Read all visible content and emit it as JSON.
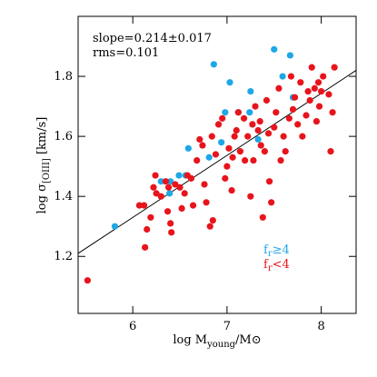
{
  "chart_data": {
    "type": "scatter",
    "xlabel": [
      "log M",
      "young",
      "/M⊙"
    ],
    "ylabel": [
      "log σ",
      "[OIII]",
      " [km/s]"
    ],
    "annotations": [
      "slope=0.214±0.017",
      "rms=0.101"
    ],
    "legend_labels": [
      [
        "f",
        "r",
        "≥4"
      ],
      [
        "f",
        "r",
        "<4"
      ]
    ],
    "xlim": [
      5.42,
      8.37
    ],
    "ylim": [
      1.01,
      2.0
    ],
    "xticks": [
      6,
      7,
      8
    ],
    "yticks": [
      1.2,
      1.4,
      1.6,
      1.8
    ],
    "fit_line": {
      "x": [
        5.42,
        8.37
      ],
      "y": [
        1.21,
        1.82
      ],
      "color": "#000000"
    },
    "series": [
      {
        "color": "#1ea7e6",
        "x": [
          5.81,
          6.3,
          6.39,
          6.4,
          6.49,
          6.56,
          6.59,
          6.81,
          6.86,
          6.94,
          6.98,
          7.03,
          7.12,
          7.24,
          7.25,
          7.33,
          7.5,
          7.59,
          7.67,
          7.7
        ],
        "y": [
          1.3,
          1.45,
          1.41,
          1.45,
          1.47,
          1.47,
          1.56,
          1.53,
          1.84,
          1.58,
          1.68,
          1.78,
          1.68,
          1.68,
          1.75,
          1.59,
          1.89,
          1.8,
          1.87,
          1.73
        ]
      },
      {
        "color": "#e8141c",
        "x": [
          5.52,
          6.07,
          6.12,
          6.13,
          6.15,
          6.19,
          6.22,
          6.24,
          6.25,
          6.3,
          6.35,
          6.37,
          6.38,
          6.4,
          6.41,
          6.45,
          6.5,
          6.52,
          6.55,
          6.58,
          6.62,
          6.64,
          6.68,
          6.71,
          6.74,
          6.76,
          6.78,
          6.82,
          6.84,
          6.85,
          6.88,
          6.91,
          6.95,
          6.98,
          7.0,
          7.02,
          7.05,
          7.06,
          7.08,
          7.1,
          7.12,
          7.14,
          7.18,
          7.19,
          7.22,
          7.25,
          7.27,
          7.28,
          7.3,
          7.33,
          7.35,
          7.36,
          7.38,
          7.4,
          7.42,
          7.44,
          7.45,
          7.47,
          7.5,
          7.52,
          7.55,
          7.57,
          7.6,
          7.62,
          7.66,
          7.68,
          7.7,
          7.72,
          7.75,
          7.78,
          7.8,
          7.84,
          7.86,
          7.88,
          7.9,
          7.93,
          7.95,
          7.97,
          7.98,
          8.0,
          8.02,
          8.08,
          8.1,
          8.12,
          8.14
        ],
        "y": [
          1.12,
          1.37,
          1.37,
          1.23,
          1.29,
          1.33,
          1.43,
          1.47,
          1.41,
          1.4,
          1.45,
          1.35,
          1.43,
          1.31,
          1.28,
          1.44,
          1.43,
          1.36,
          1.41,
          1.47,
          1.46,
          1.37,
          1.52,
          1.59,
          1.57,
          1.44,
          1.38,
          1.3,
          1.6,
          1.32,
          1.54,
          1.64,
          1.66,
          1.46,
          1.5,
          1.56,
          1.42,
          1.53,
          1.6,
          1.62,
          1.68,
          1.55,
          1.66,
          1.52,
          1.6,
          1.4,
          1.64,
          1.52,
          1.7,
          1.62,
          1.65,
          1.57,
          1.33,
          1.55,
          1.72,
          1.61,
          1.45,
          1.38,
          1.63,
          1.68,
          1.76,
          1.52,
          1.6,
          1.55,
          1.66,
          1.8,
          1.69,
          1.73,
          1.64,
          1.78,
          1.6,
          1.67,
          1.75,
          1.72,
          1.83,
          1.76,
          1.65,
          1.78,
          1.7,
          1.75,
          1.8,
          1.74,
          1.55,
          1.68,
          1.83
        ]
      }
    ]
  }
}
